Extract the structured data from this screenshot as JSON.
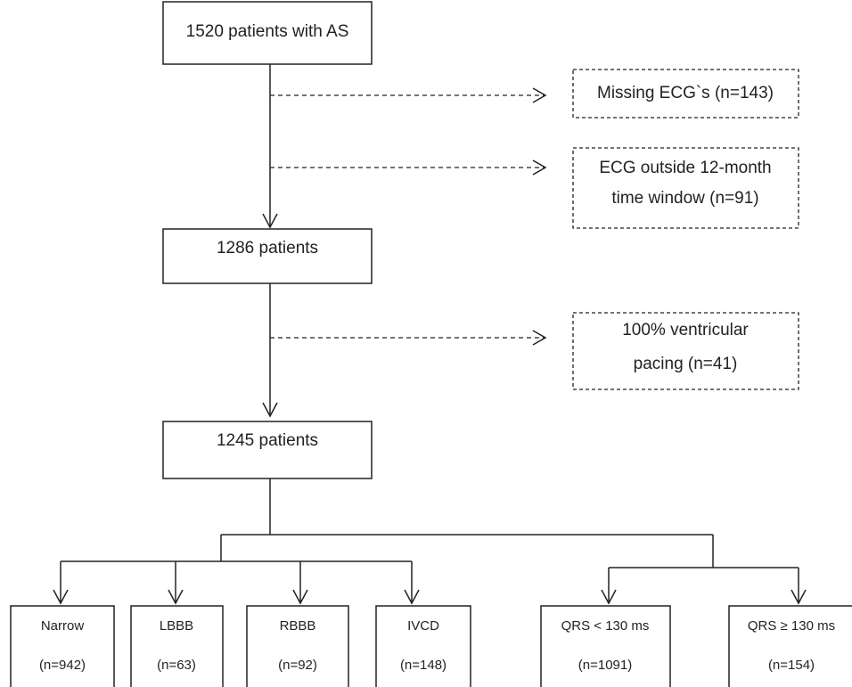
{
  "nodes": [
    {
      "lines": [
        "1520 patients with AS"
      ]
    },
    {
      "lines": [
        "Missing ECG`s (n=143)"
      ]
    },
    {
      "lines": [
        "ECG outside 12-month",
        "time window (n=91)"
      ]
    },
    {
      "lines": [
        "1286 patients"
      ]
    },
    {
      "lines": [
        "100% ventricular",
        "pacing (n=41)"
      ]
    },
    {
      "lines": [
        "1245 patients"
      ]
    },
    {
      "lines": [
        "Narrow",
        "(n=942)"
      ]
    },
    {
      "lines": [
        "LBBB",
        "(n=63)"
      ]
    },
    {
      "lines": [
        "RBBB",
        "(n=92)"
      ]
    },
    {
      "lines": [
        "IVCD",
        "(n=148)"
      ]
    },
    {
      "lines": [
        "QRS < 130 ms",
        "(n=1091)"
      ]
    },
    {
      "lines": [
        "QRS ≥ 130 ms",
        "(n=154)"
      ]
    }
  ]
}
